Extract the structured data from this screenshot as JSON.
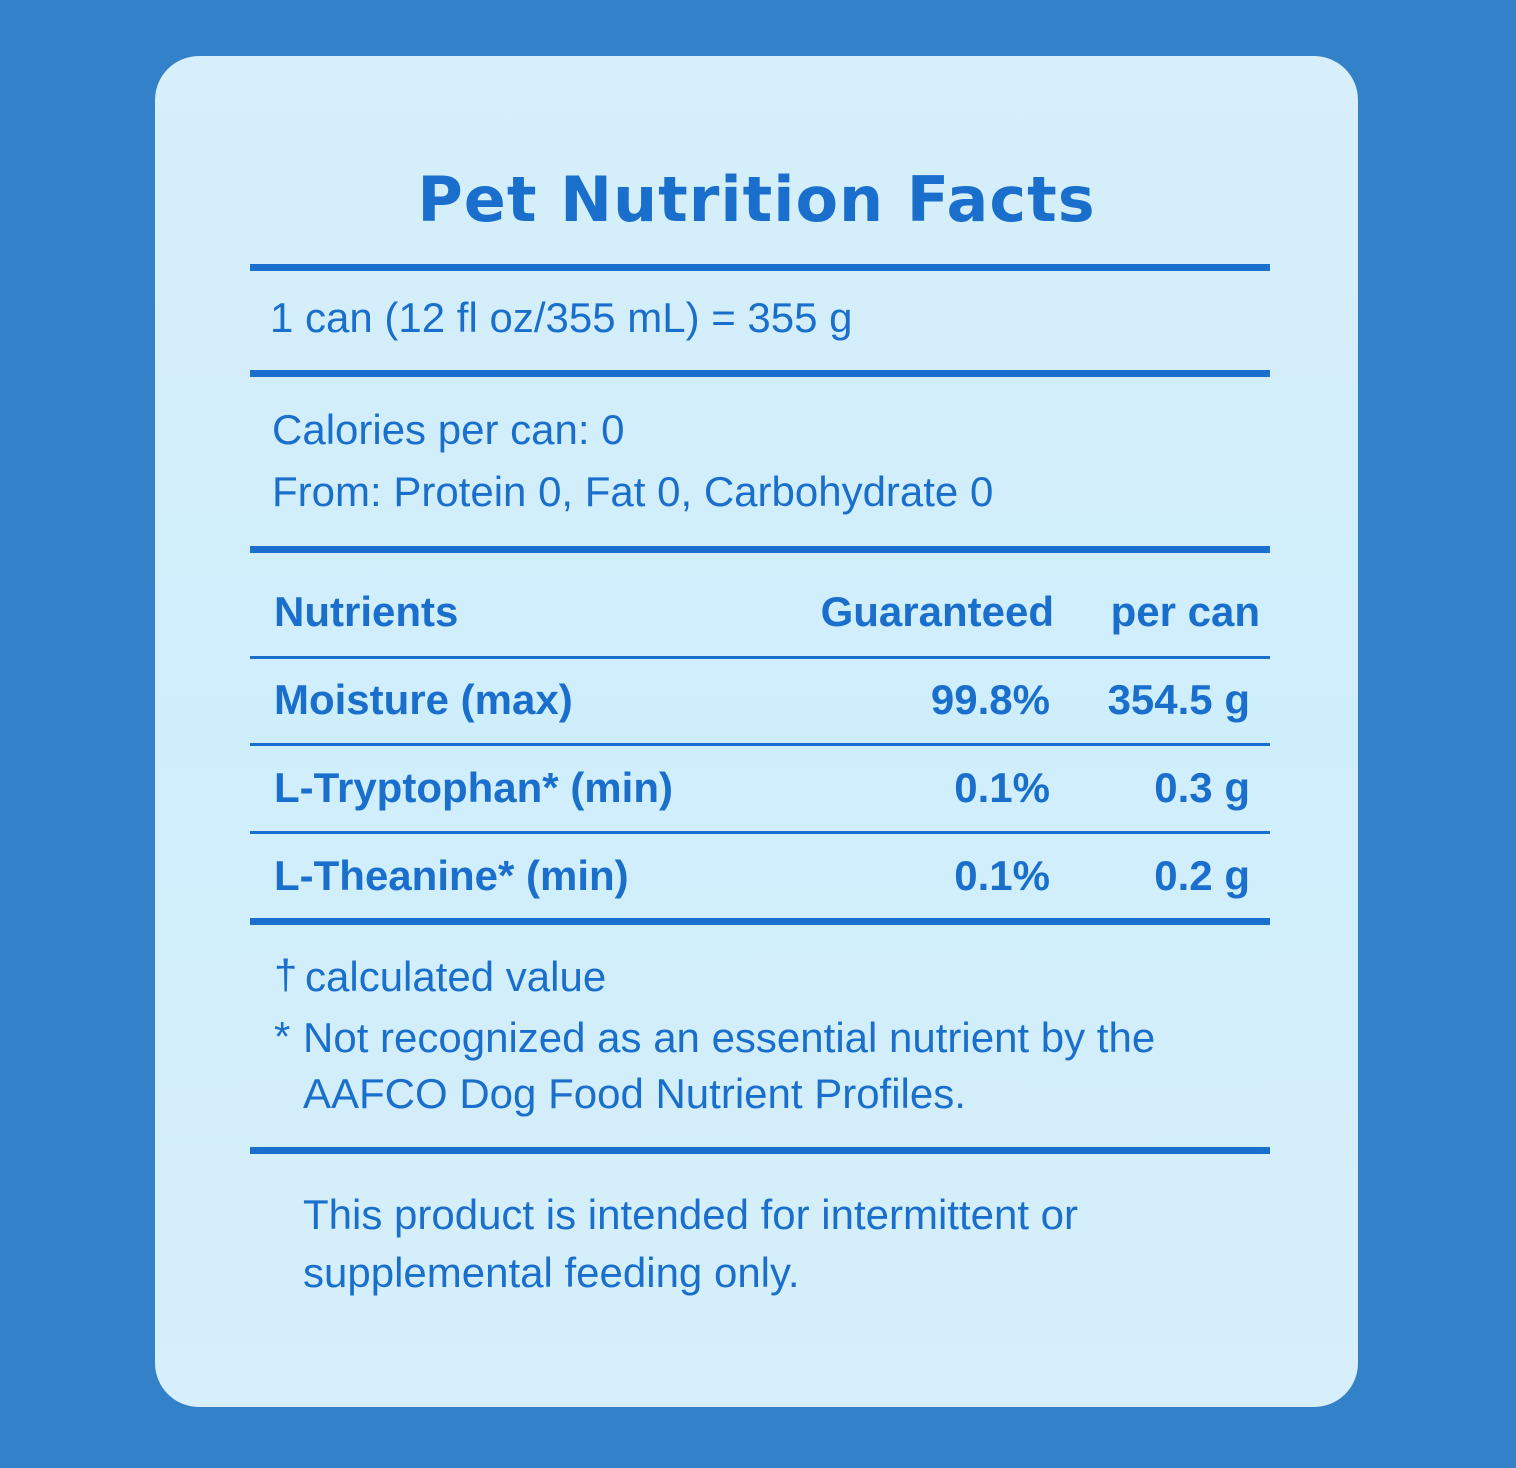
{
  "title": "Pet Nutrition Facts",
  "serving": "1 can (12 fl oz/355 mL) = 355 g",
  "calories": {
    "line1": "Calories per can: 0",
    "line2": "From: Protein 0, Fat 0, Carbohydrate 0"
  },
  "table": {
    "header": [
      "Nutrients",
      "Guaranteed",
      "per can"
    ],
    "rows": [
      [
        "Moisture (max)",
        "99.8%",
        "354.5 g"
      ],
      [
        "L-Tryptophan* (min)",
        "0.1%",
        "0.3 g"
      ],
      [
        "L-Theanine* (min)",
        "0.1%",
        "0.2 g"
      ]
    ]
  },
  "footnotes": [
    {
      "symbol": "†",
      "text": "calculated value"
    },
    {
      "symbol": "*",
      "text": "Not recognized as an essential nutrient by the AAFCO Dog Food Nutrient Profiles."
    }
  ],
  "statement": "This product is intended for intermittent or supplemental feeding only."
}
